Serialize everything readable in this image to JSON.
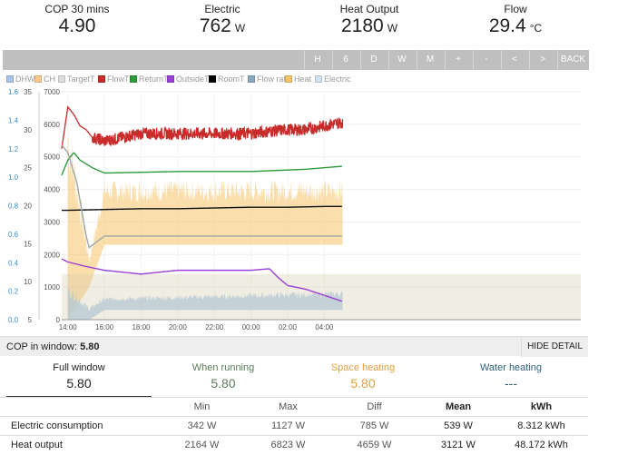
{
  "stats": [
    {
      "label": "COP 30 mins",
      "value": "4.90",
      "unit": ""
    },
    {
      "label": "Electric",
      "value": "762",
      "unit": "W"
    },
    {
      "label": "Heat Output",
      "value": "2180",
      "unit": "W"
    },
    {
      "label": "Flow",
      "value": "29.4",
      "unit": "°C"
    }
  ],
  "toolbar": [
    "H",
    "6",
    "D",
    "W",
    "M",
    "+",
    "-",
    "<",
    ">",
    "BACK"
  ],
  "legend": [
    {
      "label": "DHW",
      "color": "#a9c4ea"
    },
    {
      "label": "CH",
      "color": "#fbc98a"
    },
    {
      "label": "TargetT",
      "color": "#dddddd"
    },
    {
      "label": "FlowT",
      "color": "#c92a2a"
    },
    {
      "label": "ReturnT",
      "color": "#2f9a3a"
    },
    {
      "label": "OutsideT",
      "color": "#9b3fd6"
    },
    {
      "label": "RoomT",
      "color": "#000000"
    },
    {
      "label": "Flow rate",
      "color": "#8aa6c1"
    },
    {
      "label": "Heat",
      "color": "#f5c46a"
    },
    {
      "label": "Electric",
      "color": "#cfe3f3"
    }
  ],
  "axes": {
    "flow_rate_ticks": [
      "0.0",
      "0.2",
      "0.4",
      "0.6",
      "0.8",
      "1.0",
      "1.2",
      "1.4",
      "1.6"
    ],
    "temp_ticks": [
      "5",
      "10",
      "15",
      "20",
      "25",
      "30",
      "35"
    ],
    "power_ticks": [
      "0",
      "1000",
      "2000",
      "3000",
      "4000",
      "5000",
      "6000",
      "7000"
    ],
    "time_ticks": [
      "14:00",
      "16:00",
      "18:00",
      "20:00",
      "22:00",
      "00:00",
      "02:00",
      "04:00"
    ]
  },
  "chart_data": {
    "type": "line",
    "x_ticks": [
      "14:00",
      "16:00",
      "18:00",
      "20:00",
      "22:00",
      "00:00",
      "02:00",
      "04:00"
    ],
    "y_left_temperature": {
      "range": [
        5,
        35
      ]
    },
    "y_left_flow_rate": {
      "range": [
        0.0,
        1.6
      ]
    },
    "y_right_power": {
      "range": [
        0,
        7000
      ]
    },
    "series": [
      {
        "name": "FlowT",
        "x": [
          "13:40",
          "14:00",
          "14:20",
          "14:40",
          "15:00",
          "15:20",
          "16:00",
          "18:00",
          "20:00",
          "22:00",
          "00:00",
          "01:00",
          "02:00",
          "03:00",
          "04:00",
          "05:00"
        ],
        "y": [
          27.5,
          33,
          32,
          30.5,
          30,
          29,
          28.5,
          29.5,
          29.5,
          29.5,
          29.5,
          29.8,
          30,
          30,
          30.5,
          31
        ]
      },
      {
        "name": "ReturnT",
        "x": [
          "13:40",
          "14:00",
          "14:20",
          "14:40",
          "15:00",
          "15:20",
          "16:00",
          "18:00",
          "20:00",
          "22:00",
          "00:00",
          "01:00",
          "02:00",
          "03:00",
          "04:00",
          "05:00"
        ],
        "y": [
          24,
          26,
          27,
          26,
          25.5,
          25,
          24.3,
          24.4,
          24.5,
          24.5,
          24.5,
          24.6,
          24.7,
          24.8,
          25,
          25.2
        ]
      },
      {
        "name": "RoomT",
        "x": [
          "13:40",
          "14:00",
          "16:00",
          "18:00",
          "20:00",
          "22:00",
          "00:00",
          "02:00",
          "04:00",
          "05:00"
        ],
        "y": [
          19.4,
          19.4,
          19.5,
          19.6,
          19.6,
          19.7,
          19.8,
          19.8,
          19.9,
          19.9
        ]
      },
      {
        "name": "OutsideT",
        "x": [
          "13:40",
          "14:00",
          "15:00",
          "16:00",
          "18:00",
          "20:00",
          "22:00",
          "00:00",
          "01:00",
          "01:30",
          "02:00",
          "03:00",
          "04:00",
          "05:00"
        ],
        "y": [
          13,
          12.6,
          12,
          11.5,
          11,
          11.5,
          11.5,
          11.5,
          11.7,
          10.5,
          9.5,
          9,
          8.2,
          7.4
        ]
      },
      {
        "name": "TargetT",
        "x": [
          "13:40",
          "14:00",
          "14:30",
          "15:00",
          "15:10",
          "16:00",
          "18:00",
          "20:00",
          "22:00",
          "00:00",
          "02:00",
          "04:00",
          "05:00"
        ],
        "y": [
          28,
          27,
          23,
          16,
          14.5,
          16,
          16,
          16,
          16,
          16,
          16,
          16,
          16
        ]
      }
    ],
    "heat_power_band": {
      "x": [
        "14:00",
        "15:10",
        "16:00",
        "05:00"
      ],
      "min": [
        0,
        1000,
        2300,
        2300
      ],
      "max": [
        6800,
        2000,
        4300,
        4300
      ]
    },
    "electric_power_band": {
      "x": [
        "14:00",
        "15:10",
        "16:00",
        "05:00"
      ],
      "min": [
        0,
        0,
        300,
        300
      ],
      "max": [
        1100,
        400,
        700,
        900
      ]
    }
  },
  "cop_window": {
    "label": "COP in window:",
    "value": "5.80",
    "button": "HIDE DETAIL"
  },
  "tabs": [
    {
      "label": "Full window",
      "value": "5.80",
      "color": "#222222"
    },
    {
      "label": "When running",
      "value": "5.80",
      "color": "#5a7d5a"
    },
    {
      "label": "Space heating",
      "value": "5.80",
      "color": "#e0a040"
    },
    {
      "label": "Water heating",
      "value": "---",
      "color": "#2d5f7a"
    }
  ],
  "summary": {
    "headers": [
      "",
      "Min",
      "Max",
      "Diff",
      "Mean",
      "kWh"
    ],
    "rows": [
      [
        "Electric consumption",
        "342 W",
        "1127 W",
        "785 W",
        "539 W",
        "8.312 kWh"
      ],
      [
        "Heat output",
        "2164 W",
        "6823 W",
        "4659 W",
        "3121 W",
        "48.172 kWh"
      ]
    ]
  }
}
